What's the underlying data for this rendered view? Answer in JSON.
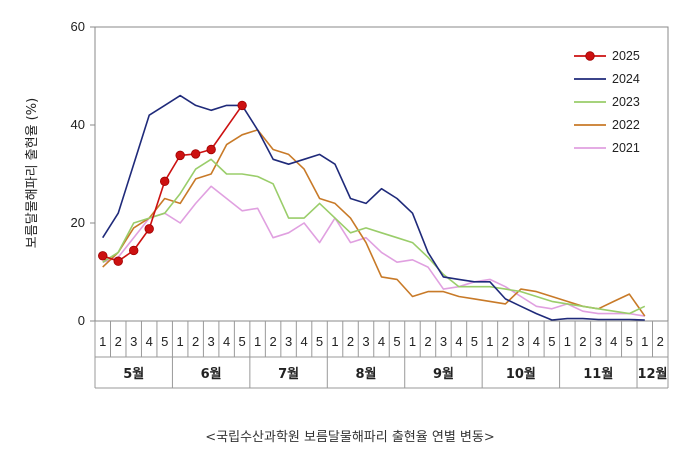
{
  "caption": "<국립수산과학원 보름달물해파리 출현율 연별 변동>",
  "chart_data": {
    "type": "line",
    "ylabel": "보름달물해파리 출현율 (%)",
    "xlabel": "",
    "ylim": [
      0,
      60
    ],
    "yticks": [
      0,
      20,
      40,
      60
    ],
    "x_weeks": [
      "1",
      "2",
      "3",
      "4",
      "5",
      "1",
      "2",
      "3",
      "4",
      "5",
      "1",
      "2",
      "3",
      "4",
      "5",
      "1",
      "2",
      "3",
      "4",
      "5",
      "1",
      "2",
      "3",
      "4",
      "5",
      "1",
      "2",
      "3",
      "4",
      "5",
      "1",
      "2",
      "3",
      "4",
      "5",
      "1",
      "2"
    ],
    "months": [
      {
        "label": "5월",
        "start": 0,
        "end": 5
      },
      {
        "label": "6월",
        "start": 5,
        "end": 10
      },
      {
        "label": "7월",
        "start": 10,
        "end": 15
      },
      {
        "label": "8월",
        "start": 15,
        "end": 20
      },
      {
        "label": "9월",
        "start": 20,
        "end": 25
      },
      {
        "label": "10월",
        "start": 25,
        "end": 30
      },
      {
        "label": "11월",
        "start": 30,
        "end": 35
      },
      {
        "label": "12월",
        "start": 35,
        "end": 37
      }
    ],
    "legend_position": "top-right",
    "series": [
      {
        "name": "2025",
        "color": "#cc1111",
        "markers": true,
        "x": [
          1,
          2,
          3,
          4,
          5,
          6,
          7,
          8,
          10
        ],
        "y": [
          13.3,
          12.2,
          14.4,
          18.8,
          28.5,
          33.8,
          34.1,
          35.0,
          44.0
        ]
      },
      {
        "name": "2024",
        "color": "#1f2a7a",
        "markers": false,
        "x": [
          1,
          2,
          3,
          4,
          5,
          6,
          7,
          8,
          9,
          10,
          11,
          12,
          13,
          14,
          15,
          16,
          17,
          18,
          19,
          20,
          21,
          22,
          23,
          24,
          25,
          26,
          27,
          28,
          29,
          30,
          31,
          32,
          33,
          34,
          35,
          36
        ],
        "y": [
          17,
          22,
          32,
          42,
          44,
          46,
          44,
          43,
          44,
          44,
          39,
          33,
          32,
          33,
          34,
          32,
          25,
          24,
          27,
          25,
          22,
          14,
          9,
          8.5,
          8,
          8,
          4.5,
          3,
          1.5,
          0.2,
          0.5,
          0.5,
          0.3,
          0.3,
          0.3,
          0.2
        ]
      },
      {
        "name": "2023",
        "color": "#9acd6a",
        "markers": false,
        "x": [
          1,
          2,
          3,
          4,
          5,
          6,
          7,
          8,
          9,
          10,
          11,
          12,
          13,
          14,
          15,
          16,
          17,
          18,
          19,
          20,
          21,
          22,
          23,
          24,
          25,
          26,
          27,
          28,
          29,
          30,
          31,
          32,
          33,
          34,
          35,
          36
        ],
        "y": [
          12,
          14,
          20,
          21,
          22,
          26,
          31,
          33,
          30,
          30,
          29.5,
          28,
          21,
          21,
          24,
          21,
          18,
          19,
          18,
          17,
          16,
          13,
          9.5,
          7,
          7,
          7,
          6.5,
          6,
          5,
          4,
          3.5,
          3,
          2.5,
          2,
          1.5,
          3
        ]
      },
      {
        "name": "2022",
        "color": "#c87a28",
        "markers": false,
        "x": [
          1,
          2,
          3,
          4,
          5,
          6,
          7,
          8,
          9,
          10,
          11,
          12,
          13,
          14,
          15,
          16,
          17,
          18,
          19,
          20,
          21,
          22,
          23,
          24,
          25,
          26,
          27,
          28,
          29,
          30,
          31,
          32,
          33,
          34,
          35,
          36
        ],
        "y": [
          11,
          14,
          19,
          21,
          25,
          24,
          29,
          30,
          36,
          38,
          39,
          35,
          34,
          31,
          25,
          24,
          21,
          16,
          9,
          8.5,
          5,
          6,
          6,
          5,
          4.5,
          4,
          3.5,
          6.5,
          6,
          5,
          4,
          3,
          2.5,
          4,
          5.5,
          1
        ]
      },
      {
        "name": "2021",
        "color": "#e0a0e0",
        "markers": false,
        "x": [
          1,
          2,
          3,
          4,
          5,
          6,
          7,
          8,
          9,
          10,
          11,
          12,
          13,
          14,
          15,
          16,
          17,
          18,
          19,
          20,
          21,
          22,
          23,
          24,
          25,
          26,
          27,
          28,
          29,
          30,
          31,
          32,
          33,
          34,
          35,
          36
        ],
        "y": [
          12,
          13,
          17,
          21,
          22,
          20,
          24,
          27.5,
          25,
          22.5,
          23,
          17,
          18,
          20,
          16,
          21,
          16,
          17,
          14,
          12,
          12.5,
          11,
          6.5,
          7,
          8,
          8.5,
          7,
          5,
          3,
          2.5,
          3.5,
          2,
          1.5,
          1.5,
          1.5,
          1
        ]
      }
    ]
  }
}
